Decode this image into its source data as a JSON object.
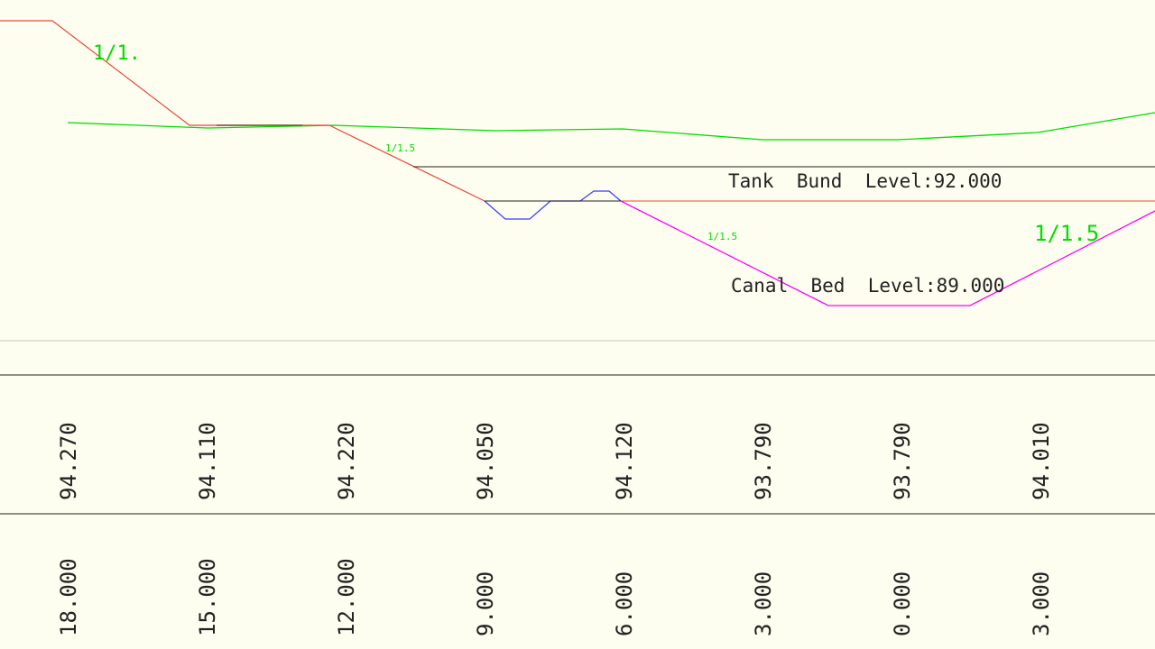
{
  "colors": {
    "background": "#fdfdf0",
    "ground_profile": "#00dd00",
    "red_profile": "#e84a3a",
    "canal_section": "#ff00ff",
    "blue_section": "#3b3bff",
    "line_dark": "#222222",
    "line_light": "#c8c8c0"
  },
  "annotations": {
    "slope_top_left": "1/1.",
    "slope_mid_left": "1/1.5",
    "slope_canal_left": "1/1.5",
    "slope_canal_right": "1/1.5",
    "tank_bund_level": "Tank  Bund  Level:92.000",
    "canal_bed_level": "Canal  Bed  Level:89.000"
  },
  "ground_levels": [
    "94.270",
    "94.110",
    "94.220",
    "94.050",
    "94.120",
    "93.790",
    "93.790",
    "94.010"
  ],
  "offsets": [
    "18.000",
    "15.000",
    "12.000",
    "9.000",
    "6.000",
    "3.000",
    "0.000",
    "3.000"
  ]
}
